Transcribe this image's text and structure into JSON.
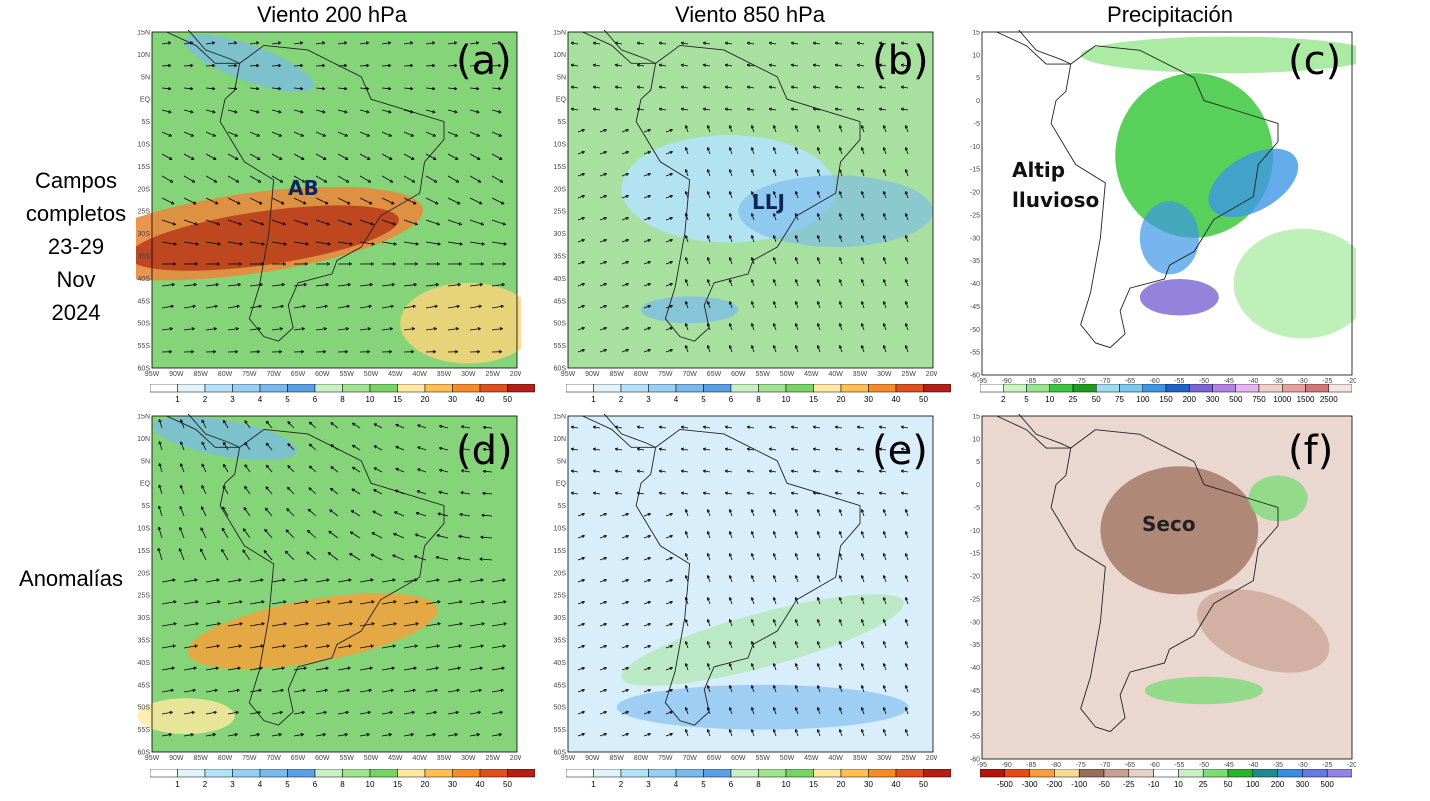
{
  "columns": [
    "Viento 200 hPa",
    "Viento 850 hPa",
    "Precipitación"
  ],
  "rows": {
    "full": [
      "Campos",
      "completos",
      "23-29",
      "Nov",
      "2024"
    ],
    "anom": "Anomalías"
  },
  "panels": [
    {
      "id": "a",
      "label": "(a)",
      "field": "wind200",
      "kind": "full"
    },
    {
      "id": "b",
      "label": "(b)",
      "field": "wind850",
      "kind": "full"
    },
    {
      "id": "c",
      "label": "(c)",
      "field": "precip",
      "kind": "full"
    },
    {
      "id": "d",
      "label": "(d)",
      "field": "wind200",
      "kind": "anom"
    },
    {
      "id": "e",
      "label": "(e)",
      "field": "wind850",
      "kind": "anom"
    },
    {
      "id": "f",
      "label": "(f)",
      "field": "precip",
      "kind": "anom"
    }
  ],
  "annotations": {
    "ab": "AB",
    "llj": "LLJ",
    "altip_1": "Altip",
    "altip_2": "lluvioso",
    "seco": "Seco"
  },
  "wind_axis": {
    "lon_ticks": [
      "95W",
      "90W",
      "85W",
      "80W",
      "75W",
      "70W",
      "65W",
      "60W",
      "55W",
      "50W",
      "45W",
      "40W",
      "35W",
      "30W",
      "25W",
      "20W"
    ],
    "lat_ticks": [
      "15N",
      "10N",
      "5N",
      "EQ",
      "5S",
      "10S",
      "15S",
      "20S",
      "25S",
      "30S",
      "35S",
      "40S",
      "45S",
      "50S",
      "55S",
      "60S"
    ]
  },
  "precip_axis": {
    "lon_ticks": [
      "-95",
      "-90",
      "-85",
      "-80",
      "-75",
      "-70",
      "-65",
      "-60",
      "-55",
      "-50",
      "-45",
      "-40",
      "-35",
      "-30",
      "-25",
      "-20"
    ],
    "lat_ticks": [
      "15",
      "10",
      "5",
      "0",
      "-5",
      "-10",
      "-15",
      "-20",
      "-25",
      "-30",
      "-35",
      "-40",
      "-45",
      "-50",
      "-55",
      "-60"
    ]
  },
  "colorbars": {
    "wind": {
      "labels": [
        "1",
        "2",
        "3",
        "4",
        "5",
        "6",
        "8",
        "10",
        "15",
        "20",
        "30",
        "40",
        "50"
      ],
      "colors": [
        "#ffffff",
        "#e1f4fc",
        "#b4e2f8",
        "#96d0f4",
        "#78b9ee",
        "#5aa0e6",
        "#c8f0c0",
        "#a0e490",
        "#78d264",
        "#ffe8a0",
        "#ffc050",
        "#f58c28",
        "#e0501e",
        "#b41e14"
      ]
    },
    "precip_full": {
      "labels": [
        "2",
        "5",
        "10",
        "25",
        "50",
        "75",
        "100",
        "150",
        "200",
        "300",
        "500",
        "750",
        "1000",
        "1500",
        "2500"
      ],
      "colors": [
        "#ffffff",
        "#c8f5c0",
        "#96e68c",
        "#3cc83c",
        "#1ea01e",
        "#a0dcf0",
        "#78c8f0",
        "#3c96e6",
        "#1e64c8",
        "#7864d2",
        "#b482e6",
        "#e6b4f0",
        "#f0d2c8",
        "#e6a0a0",
        "#d27878",
        "#f5e6e6"
      ]
    },
    "precip_anom": {
      "labels": [
        "-500",
        "-300",
        "-200",
        "-100",
        "-50",
        "-25",
        "-10",
        "10",
        "25",
        "50",
        "100",
        "200",
        "300",
        "500"
      ],
      "colors": [
        "#b4140a",
        "#e64b14",
        "#f5a03c",
        "#f5dc96",
        "#9b6e5a",
        "#c8a090",
        "#e6d2c8",
        "#ffffff",
        "#c8f0c0",
        "#7ddc78",
        "#28b428",
        "#1e8c8c",
        "#3c8ce6",
        "#6478e6",
        "#9682e6"
      ]
    }
  }
}
